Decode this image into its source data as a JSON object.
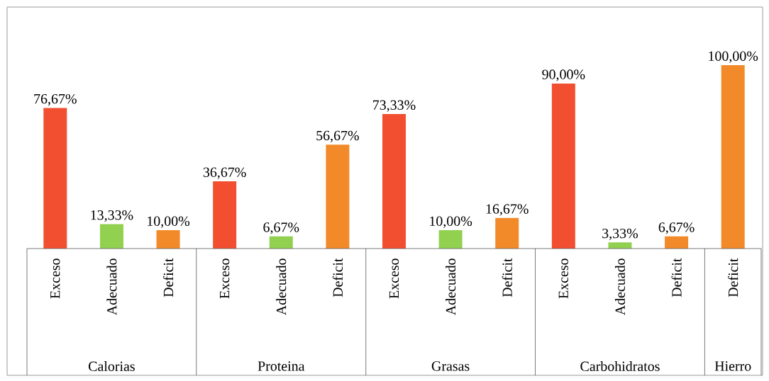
{
  "chart_data": {
    "type": "bar",
    "categories": [
      "Exceso",
      "Adecuado",
      "Deficit",
      "Exceso",
      "Adecuado",
      "Deficit",
      "Exceso",
      "Adecuado",
      "Deficit",
      "Exceso",
      "Adecuado",
      "Deficit",
      "Deficit"
    ],
    "values": [
      76.67,
      13.33,
      10.0,
      36.67,
      6.67,
      56.67,
      73.33,
      10.0,
      16.67,
      90.0,
      3.33,
      6.67,
      100.0
    ],
    "value_labels": [
      "76,67%",
      "13,33%",
      "10,00%",
      "36,67%",
      "6,67%",
      "56,67%",
      "73,33%",
      "10,00%",
      "16,67%",
      "90,00%",
      "3,33%",
      "6,67%",
      "100,00%"
    ],
    "colors": [
      "#f24f30",
      "#92d050",
      "#f28a2a",
      "#f24f30",
      "#92d050",
      "#f28a2a",
      "#f24f30",
      "#92d050",
      "#f28a2a",
      "#f24f30",
      "#92d050",
      "#f28a2a",
      "#f28a2a"
    ],
    "annotations": [
      "Calorias",
      "Proteina",
      "Grasas",
      "Carbohidratos",
      "Hierro"
    ]
  }
}
